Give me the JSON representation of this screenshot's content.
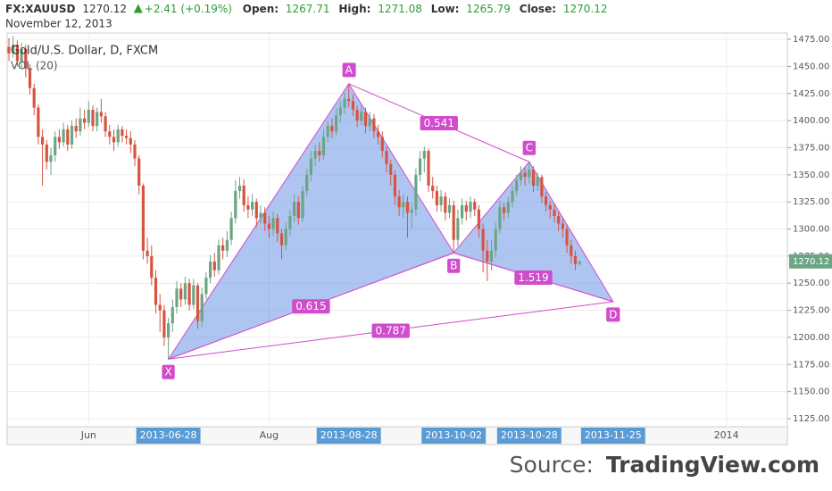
{
  "header": {
    "symbol": "FX:XAUUSD",
    "change": "+2.41 (+0.19%)",
    "open_label": "Open:",
    "high_label": "High:",
    "low_label": "Low:",
    "close_label": "Close:",
    "date": "November 12, 2013"
  },
  "chart_data": {
    "type": "candlestick",
    "title": "Gold/U.S. Dollar, D, FXCM",
    "indicator": "VOL (20)",
    "categories": [
      null,
      null,
      null,
      null,
      null,
      null,
      null,
      null,
      null,
      null,
      null,
      null,
      null,
      null,
      null,
      null,
      null,
      null,
      null,
      "Jun",
      null,
      null,
      null,
      null,
      null,
      null,
      null,
      null,
      null,
      null,
      null,
      null,
      null,
      null,
      null,
      null,
      null,
      null,
      "2013-06-28",
      null,
      null,
      null,
      null,
      null,
      null,
      null,
      null,
      null,
      null,
      null,
      null,
      null,
      null,
      null,
      null,
      null,
      null,
      null,
      null,
      null,
      null,
      null,
      "Aug",
      null,
      null,
      null,
      null,
      null,
      null,
      null,
      null,
      null,
      null,
      null,
      null,
      null,
      null,
      null,
      null,
      null,
      null,
      "2013-08-28",
      null,
      null,
      null,
      null,
      null,
      null,
      null,
      null,
      null,
      null,
      null,
      null,
      null,
      null,
      null,
      null,
      null,
      null,
      null,
      null,
      null,
      null,
      null,
      null,
      "2013-10-02",
      null,
      null,
      null,
      null,
      null,
      null,
      null,
      null,
      null,
      null,
      null,
      null,
      null,
      null,
      null,
      null,
      null,
      "2013-10-28",
      null,
      null,
      null,
      null,
      null,
      null,
      null,
      null,
      null,
      null,
      null,
      null,
      null,
      null,
      null,
      null,
      null,
      null,
      null,
      "2013-11-25",
      null,
      null,
      null,
      null,
      null,
      null,
      null,
      null,
      null,
      null,
      null,
      null,
      null,
      null,
      null,
      null,
      null,
      null,
      null,
      null,
      null,
      null,
      null,
      null,
      null,
      null,
      "2014",
      null,
      null,
      null,
      null,
      null,
      null,
      null,
      null,
      null,
      null,
      null,
      null,
      null,
      null
    ],
    "open": [
      1468,
      1462,
      1470,
      1455,
      1466,
      1448,
      1430,
      1412,
      1385,
      1378,
      1362,
      1368,
      1385,
      1380,
      1392,
      1378,
      1395,
      1390,
      1402,
      1398,
      1410,
      1395,
      1408,
      1404,
      1390,
      1385,
      1380,
      1392,
      1386,
      1384,
      1378,
      1365,
      1340,
      1280,
      1275,
      1255,
      1230,
      1225,
      1200,
      1213,
      1228,
      1245,
      1235,
      1250,
      1230,
      1248,
      1215,
      1240,
      1255,
      1270,
      1262,
      1285,
      1280,
      1290,
      1310,
      1335,
      1340,
      1322,
      1318,
      1325,
      1310,
      1315,
      1305,
      1300,
      1310,
      1296,
      1285,
      1300,
      1312,
      1325,
      1310,
      1335,
      1350,
      1365,
      1372,
      1368,
      1385,
      1395,
      1390,
      1405,
      1412,
      1420,
      1418,
      1410,
      1400,
      1408,
      1395,
      1402,
      1390,
      1385,
      1372,
      1360,
      1350,
      1330,
      1320,
      1325,
      1315,
      1318,
      1350,
      1365,
      1372,
      1340,
      1335,
      1322,
      1330,
      1315,
      1322,
      1290,
      1310,
      1322,
      1316,
      1325,
      1318,
      1300,
      1280,
      1270,
      1280,
      1300,
      1320,
      1315,
      1325,
      1335,
      1345,
      1352,
      1348,
      1355,
      1340,
      1348,
      1330,
      1322,
      1318,
      1312,
      1305,
      1300,
      1285,
      1275,
      1267.71,
      null,
      null,
      null,
      null,
      null,
      null,
      null,
      null,
      null,
      null,
      null,
      null,
      null,
      null,
      null,
      null,
      null,
      null,
      null,
      null,
      null,
      null,
      null,
      null,
      null,
      null,
      null,
      null,
      null,
      null,
      null,
      null,
      null,
      null,
      null,
      null,
      null,
      null,
      null,
      null,
      null,
      null,
      null,
      null,
      null,
      null,
      null,
      null,
      null
    ],
    "high": [
      1476,
      1478,
      1474,
      1472,
      1470,
      1452,
      1434,
      1415,
      1392,
      1382,
      1375,
      1390,
      1392,
      1398,
      1396,
      1400,
      1402,
      1412,
      1410,
      1418,
      1414,
      1412,
      1420,
      1408,
      1396,
      1392,
      1396,
      1395,
      1392,
      1390,
      1382,
      1368,
      1342,
      1292,
      1285,
      1262,
      1240,
      1230,
      1218,
      1235,
      1252,
      1250,
      1256,
      1254,
      1254,
      1250,
      1246,
      1260,
      1276,
      1278,
      1290,
      1292,
      1298,
      1316,
      1345,
      1348,
      1346,
      1330,
      1332,
      1328,
      1322,
      1320,
      1312,
      1316,
      1314,
      1300,
      1306,
      1318,
      1332,
      1330,
      1340,
      1356,
      1372,
      1378,
      1380,
      1392,
      1400,
      1402,
      1412,
      1418,
      1426,
      1434,
      1424,
      1414,
      1414,
      1412,
      1408,
      1406,
      1396,
      1390,
      1376,
      1364,
      1354,
      1336,
      1332,
      1330,
      1324,
      1356,
      1372,
      1376,
      1374,
      1348,
      1340,
      1336,
      1334,
      1328,
      1326,
      1318,
      1328,
      1326,
      1330,
      1328,
      1322,
      1305,
      1290,
      1290,
      1306,
      1326,
      1324,
      1330,
      1340,
      1350,
      1358,
      1356,
      1362,
      1358,
      1352,
      1350,
      1334,
      1326,
      1324,
      1316,
      1310,
      1304,
      1290,
      1280,
      1271.08,
      null,
      null,
      null,
      null,
      null,
      null,
      null,
      null,
      null,
      null,
      null,
      null,
      null,
      null,
      null,
      null,
      null,
      null,
      null,
      null,
      null,
      null,
      null,
      null,
      null,
      null,
      null,
      null,
      null,
      null,
      null,
      null,
      null,
      null,
      null,
      null,
      null,
      null,
      null,
      null,
      null,
      null,
      null,
      null,
      null,
      null,
      null,
      null,
      null
    ],
    "low": [
      1455,
      1458,
      1450,
      1448,
      1440,
      1424,
      1405,
      1378,
      1340,
      1355,
      1350,
      1362,
      1374,
      1376,
      1372,
      1374,
      1384,
      1386,
      1392,
      1394,
      1390,
      1390,
      1398,
      1385,
      1378,
      1372,
      1376,
      1380,
      1378,
      1370,
      1358,
      1332,
      1272,
      1268,
      1248,
      1222,
      1205,
      1192,
      1180,
      1205,
      1222,
      1228,
      1230,
      1225,
      1226,
      1208,
      1210,
      1235,
      1250,
      1256,
      1258,
      1272,
      1274,
      1285,
      1305,
      1328,
      1316,
      1310,
      1312,
      1302,
      1305,
      1298,
      1292,
      1294,
      1288,
      1272,
      1280,
      1294,
      1306,
      1304,
      1306,
      1330,
      1344,
      1358,
      1362,
      1364,
      1380,
      1384,
      1386,
      1398,
      1406,
      1412,
      1404,
      1394,
      1396,
      1388,
      1390,
      1384,
      1378,
      1366,
      1352,
      1340,
      1322,
      1312,
      1310,
      1292,
      1300,
      1312,
      1344,
      1352,
      1334,
      1328,
      1316,
      1316,
      1308,
      1310,
      1278,
      1284,
      1304,
      1308,
      1310,
      1312,
      1292,
      1260,
      1252,
      1262,
      1274,
      1296,
      1308,
      1310,
      1320,
      1330,
      1340,
      1340,
      1342,
      1334,
      1335,
      1324,
      1316,
      1310,
      1306,
      1298,
      1292,
      1278,
      1268,
      1262,
      1265.79,
      null,
      null,
      null,
      null,
      null,
      null,
      null,
      null,
      null,
      null,
      null,
      null,
      null,
      null,
      null,
      null,
      null,
      null,
      null,
      null,
      null,
      null,
      null,
      null,
      null,
      null,
      null,
      null,
      null,
      null,
      null,
      null,
      null,
      null,
      null,
      null,
      null,
      null,
      null,
      null,
      null,
      null,
      null,
      null,
      null,
      null,
      null,
      null,
      null
    ],
    "close": [
      1462,
      1470,
      1455,
      1466,
      1448,
      1430,
      1412,
      1385,
      1378,
      1362,
      1368,
      1385,
      1380,
      1392,
      1378,
      1395,
      1390,
      1402,
      1398,
      1410,
      1395,
      1408,
      1404,
      1390,
      1385,
      1380,
      1392,
      1386,
      1384,
      1378,
      1365,
      1340,
      1280,
      1275,
      1255,
      1230,
      1225,
      1200,
      1213,
      1228,
      1245,
      1235,
      1250,
      1230,
      1248,
      1215,
      1240,
      1255,
      1270,
      1262,
      1285,
      1280,
      1290,
      1310,
      1335,
      1340,
      1322,
      1318,
      1325,
      1310,
      1315,
      1305,
      1300,
      1310,
      1296,
      1285,
      1300,
      1312,
      1325,
      1310,
      1335,
      1350,
      1365,
      1372,
      1368,
      1385,
      1395,
      1390,
      1405,
      1412,
      1420,
      1418,
      1410,
      1400,
      1408,
      1395,
      1402,
      1390,
      1385,
      1372,
      1360,
      1350,
      1330,
      1320,
      1325,
      1315,
      1318,
      1350,
      1365,
      1372,
      1340,
      1335,
      1322,
      1330,
      1315,
      1322,
      1290,
      1310,
      1322,
      1316,
      1325,
      1318,
      1300,
      1280,
      1270,
      1280,
      1300,
      1320,
      1315,
      1325,
      1335,
      1345,
      1352,
      1348,
      1355,
      1340,
      1348,
      1330,
      1322,
      1318,
      1312,
      1305,
      1300,
      1285,
      1275,
      1267.71,
      1270.12,
      null,
      null,
      null,
      null,
      null,
      null,
      null,
      null,
      null,
      null,
      null,
      null,
      null,
      null,
      null,
      null,
      null,
      null,
      null,
      null,
      null,
      null,
      null,
      null,
      null,
      null,
      null,
      null,
      null,
      null,
      null,
      null,
      null,
      null,
      null,
      null,
      null,
      null,
      null,
      null,
      null,
      null,
      null,
      null,
      null,
      null,
      null,
      null,
      null
    ],
    "up_color": "#6ba583",
    "down_color": "#d75442",
    "pattern_color": "#d04ccd",
    "ylim": [
      1117.6,
      1480.8
    ],
    "yticks": [
      {
        "value": 1125,
        "label": "1125.00"
      },
      {
        "value": 1150,
        "label": "1150.00"
      },
      {
        "value": 1175,
        "label": "1175.00"
      },
      {
        "value": 1200,
        "label": "1200.00"
      },
      {
        "value": 1225,
        "label": "1225.00"
      },
      {
        "value": 1250,
        "label": "1250.00"
      },
      {
        "value": 1275,
        "label": "1275.00"
      },
      {
        "value": 1300,
        "label": "1300.00"
      },
      {
        "value": 1325,
        "label": "1325.00"
      },
      {
        "value": 1350,
        "label": "1350.00"
      },
      {
        "value": 1375,
        "label": "1375.00"
      },
      {
        "value": 1400,
        "label": "1400.00"
      },
      {
        "value": 1425,
        "label": "1425.00"
      },
      {
        "value": 1450,
        "label": "1450.00"
      },
      {
        "value": 1475,
        "label": "1475.00"
      }
    ],
    "grid": true,
    "pattern": {
      "points": [
        {
          "label": "X",
          "category": "2013-06-28",
          "price": 1180
        },
        {
          "label": "A",
          "category": "2013-08-28",
          "price": 1434
        },
        {
          "label": "B",
          "category": "2013-10-02",
          "price": 1278
        },
        {
          "label": "C",
          "category": "2013-10-28",
          "price": 1362
        },
        {
          "label": "D",
          "category": "2013-11-25",
          "price": 1233
        }
      ],
      "ratios": [
        {
          "ratio": 0.615,
          "from": "X",
          "to": "B"
        },
        {
          "ratio": 0.541,
          "from": "A",
          "to": "C"
        },
        {
          "ratio": 1.519,
          "from": "B",
          "to": "D"
        },
        {
          "ratio": 0.787,
          "from": "X",
          "to": "D"
        }
      ]
    }
  },
  "source": {
    "prefix": "Source:",
    "site": "TradingView.com"
  }
}
